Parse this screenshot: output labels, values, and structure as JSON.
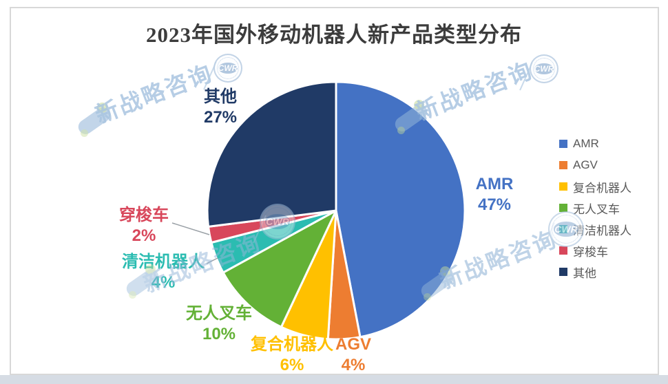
{
  "page": {
    "title": "2023年国外移动机器人新产品类型分布"
  },
  "watermark": {
    "text": "新战略咨询",
    "badge_text": "CWR"
  },
  "chart_data": {
    "type": "pie",
    "title": "2023年国外移动机器人新产品类型分布",
    "unit": "percent",
    "start_angle_deg": 0,
    "direction": "clockwise",
    "legend_position": "right",
    "series": [
      {
        "label": "AMR",
        "value": 47,
        "pct": "47%",
        "color": "#4472C4"
      },
      {
        "label": "AGV",
        "value": 4,
        "pct": "4%",
        "color": "#ED7D31"
      },
      {
        "label": "复合机器人",
        "value": 6,
        "pct": "6%",
        "color": "#FFC000"
      },
      {
        "label": "无人叉车",
        "value": 10,
        "pct": "10%",
        "color": "#63B136"
      },
      {
        "label": "清洁机器人",
        "value": 4,
        "pct": "4%",
        "color": "#2BBCB1"
      },
      {
        "label": "穿梭车",
        "value": 2,
        "pct": "2%",
        "color": "#D8475B"
      },
      {
        "label": "其他",
        "value": 27,
        "pct": "27%",
        "color": "#203A66"
      }
    ],
    "leader_lines": [
      {
        "series": "穿梭车",
        "points": [
          [
            250,
            324
          ],
          [
            304,
            341
          ]
        ]
      },
      {
        "series": "清洁机器人",
        "points": [
          [
            300,
            383
          ],
          [
            316,
            375
          ]
        ]
      }
    ]
  }
}
